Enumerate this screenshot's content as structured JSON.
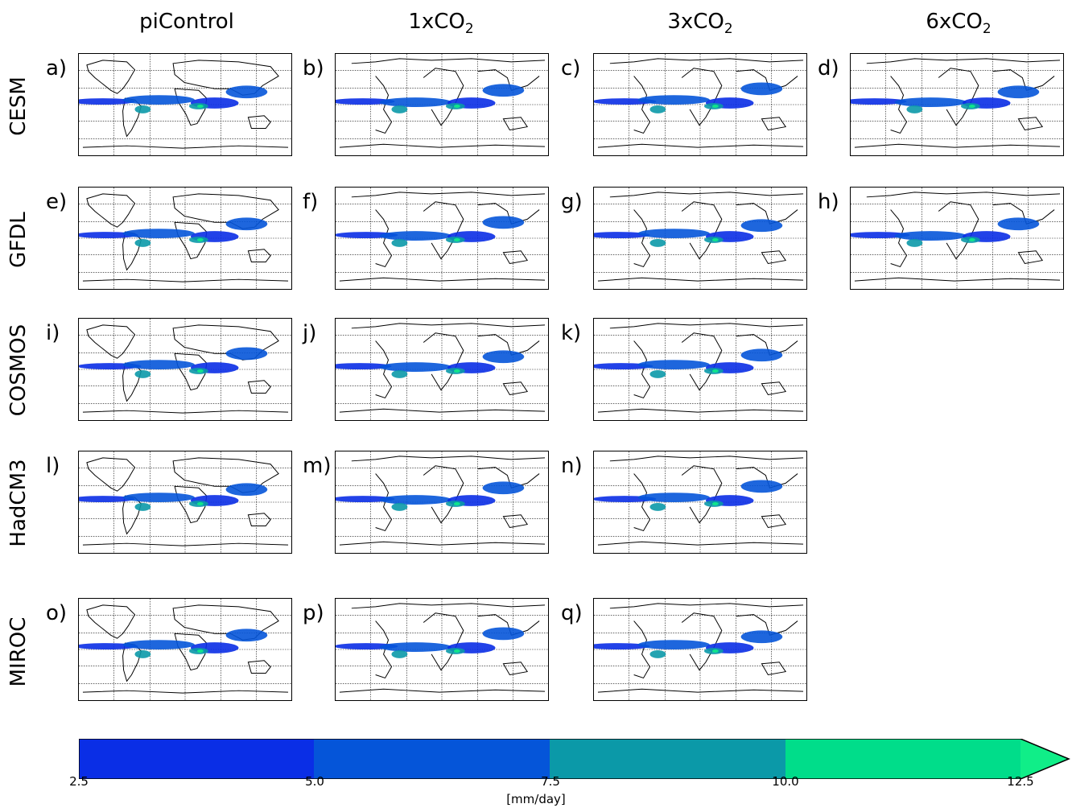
{
  "columns": [
    {
      "base": "piControl",
      "sub": ""
    },
    {
      "base": "1xCO",
      "sub": "2"
    },
    {
      "base": "3xCO",
      "sub": "2"
    },
    {
      "base": "6xCO",
      "sub": "2"
    }
  ],
  "rows": [
    "CESM",
    "GFDL",
    "COSMOS",
    "HadCM3",
    "MIROC"
  ],
  "panels": [
    [
      "a)",
      "b)",
      "c)",
      "d)"
    ],
    [
      "e)",
      "f)",
      "g)",
      "h)"
    ],
    [
      "i)",
      "j)",
      "k)",
      ""
    ],
    [
      "l)",
      "m)",
      "n)",
      ""
    ],
    [
      "o)",
      "p)",
      "q)",
      ""
    ]
  ],
  "colorbar": {
    "ticks": [
      "2.5",
      "5.0",
      "7.5",
      "10.0",
      "12.5"
    ],
    "colors": [
      "#0a2ee6",
      "#0555d9",
      "#0b99a8",
      "#00dd8a",
      "#10ee88"
    ],
    "label": "[mm/day]"
  }
}
